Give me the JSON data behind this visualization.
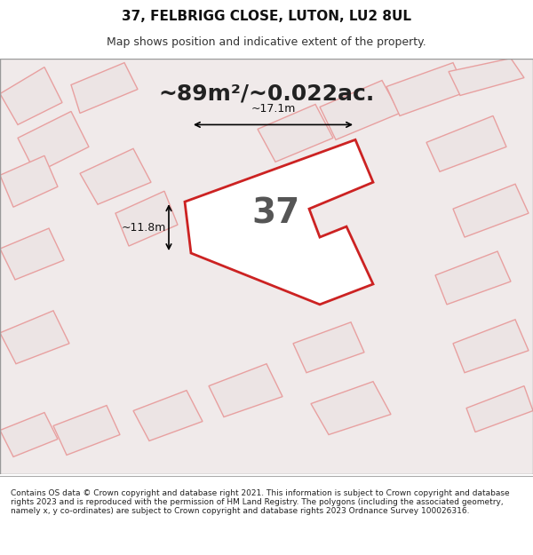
{
  "title_line1": "37, FELBRIGG CLOSE, LUTON, LU2 8UL",
  "title_line2": "Map shows position and indicative extent of the property.",
  "footer_text": "Contains OS data © Crown copyright and database right 2021. This information is subject to Crown copyright and database rights 2023 and is reproduced with the permission of HM Land Registry. The polygons (including the associated geometry, namely x, y co-ordinates) are subject to Crown copyright and database rights 2023 Ordnance Survey 100026316.",
  "area_label": "~89m²/~0.022ac.",
  "number_label": "37",
  "dim_h": "~11.8m",
  "dim_w": "~17.1m",
  "bg_color": "#f5f0f0",
  "map_bg": "#f9f5f5",
  "plot_color": "#cc2222",
  "neighbor_color": "#e8a0a0",
  "neighbor_fill": "#e8d8d8",
  "title_bg": "#ffffff",
  "footer_bg": "#ffffff",
  "map_area_bg": "#f0eaea"
}
